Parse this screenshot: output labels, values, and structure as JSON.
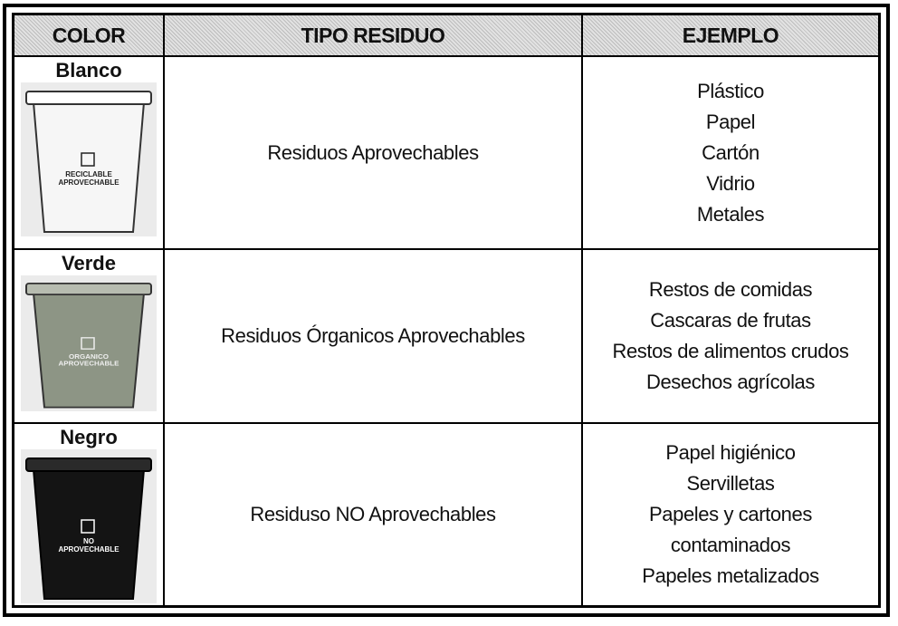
{
  "header": {
    "columns": [
      "COLOR",
      "TIPO RESIDUO",
      "EJEMPLO"
    ]
  },
  "table": {
    "rows": [
      {
        "color": "Blanco",
        "bin_label": [
          "RECICLABLE",
          "APROVECHABLE"
        ],
        "tipo": "Residuos Aprovechables",
        "ejemplos": [
          "Plástico",
          "Papel",
          "Cartón",
          "Vidrio",
          "Metales"
        ]
      },
      {
        "color": "Verde",
        "bin_label": [
          "ORGANICO",
          "APROVECHABLE"
        ],
        "tipo": "Residuos Órganicos Aprovechables",
        "ejemplos": [
          "Restos de comidas",
          "Cascaras de frutas",
          "Restos de alimentos crudos",
          "Desechos agrícolas"
        ]
      },
      {
        "color": "Negro",
        "bin_label": [
          "NO",
          "APROVECHABLE"
        ],
        "tipo": "Residuso NO Aprovechables",
        "ejemplos": [
          "Papel higiénico",
          "Servilletas",
          "Papeles y cartones",
          "contaminados",
          "Papeles metalizados"
        ]
      }
    ]
  }
}
